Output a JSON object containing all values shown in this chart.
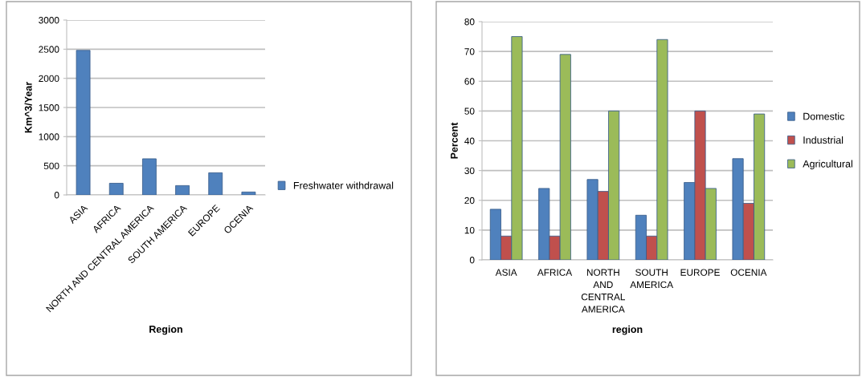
{
  "chart_data": [
    {
      "type": "bar",
      "xlabel": "Region",
      "ylabel": "Km^3/Year",
      "categories": [
        "ASIA",
        "AFRICA",
        "NORTH AND CENTRAL AMERICA",
        "SOUTH AMERICA",
        "EUROPE",
        "OCENIA"
      ],
      "series": [
        {
          "name": "Freshwater withdrawal",
          "color": "#4f81bd",
          "values": [
            2480,
            200,
            620,
            160,
            380,
            50
          ]
        }
      ],
      "ylim": [
        0,
        3000
      ],
      "yticks": [
        0,
        500,
        1000,
        1500,
        2000,
        2500,
        3000
      ],
      "grid": "y",
      "legend": "right"
    },
    {
      "type": "bar",
      "xlabel": "region",
      "ylabel": "Percent",
      "categories": [
        "ASIA",
        "AFRICA",
        "NORTH AND CENTRAL AMERICA",
        "SOUTH AMERICA",
        "EUROPE",
        "OCENIA"
      ],
      "series": [
        {
          "name": "Domestic",
          "color": "#4f81bd",
          "values": [
            17,
            24,
            27,
            15,
            26,
            34
          ]
        },
        {
          "name": "Industrial",
          "color": "#c0504d",
          "values": [
            8,
            8,
            23,
            8,
            50,
            19
          ]
        },
        {
          "name": "Agricultural",
          "color": "#9bbb59",
          "values": [
            75,
            69,
            50,
            74,
            24,
            49
          ]
        }
      ],
      "ylim": [
        0,
        80
      ],
      "yticks": [
        0,
        10,
        20,
        30,
        40,
        50,
        60,
        70,
        80
      ],
      "grid": "y",
      "legend": "right"
    }
  ]
}
